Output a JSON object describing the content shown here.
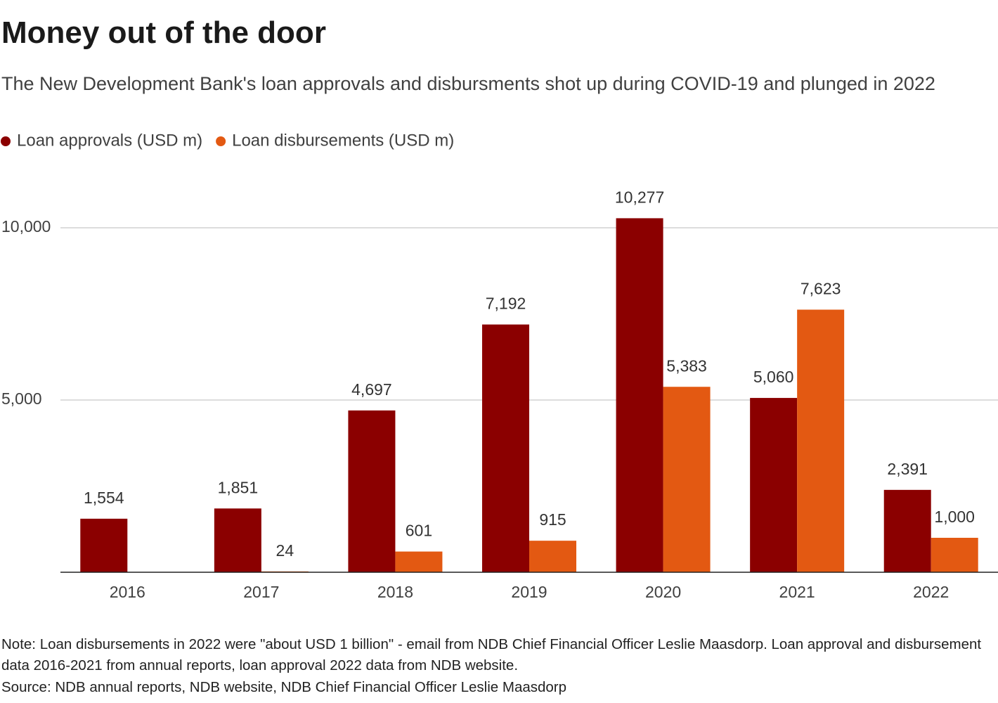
{
  "chart_data": {
    "type": "bar",
    "title": "Money out of the door",
    "subtitle": "The New Development Bank's loan approvals and disbursments shot up during COVID-19 and plunged in 2022",
    "categories": [
      "2016",
      "2017",
      "2018",
      "2019",
      "2020",
      "2021",
      "2022"
    ],
    "series": [
      {
        "name": "Loan approvals (USD m)",
        "color": "#8b0000",
        "values": [
          1554,
          1851,
          4697,
          7192,
          10277,
          5060,
          2391
        ],
        "value_labels": [
          "1,554",
          "1,851",
          "4,697",
          "7,192",
          "10,277",
          "5,060",
          "2,391"
        ]
      },
      {
        "name": "Loan disbursements (USD m)",
        "color": "#e35912",
        "values": [
          null,
          24,
          601,
          915,
          5383,
          7623,
          1000
        ],
        "value_labels": [
          null,
          "24",
          "601",
          "915",
          "5,383",
          "7,623",
          "1,000"
        ]
      }
    ],
    "ylim": [
      0,
      11000
    ],
    "yticks": [
      {
        "value": 5000,
        "label": "5,000"
      },
      {
        "value": 10000,
        "label": "10,000"
      }
    ],
    "grid": true,
    "legend": "top-left",
    "note": "Note: Loan disbursements in 2022 were \"about USD 1 billion\" - email from NDB Chief Financial Officer Leslie Maasdorp. Loan approval and disbursement data 2016-2021 from annual reports, loan approval 2022 data from NDB website.",
    "source": "Source: NDB annual reports, NDB website, NDB Chief Financial Officer Leslie Maasdorp"
  }
}
